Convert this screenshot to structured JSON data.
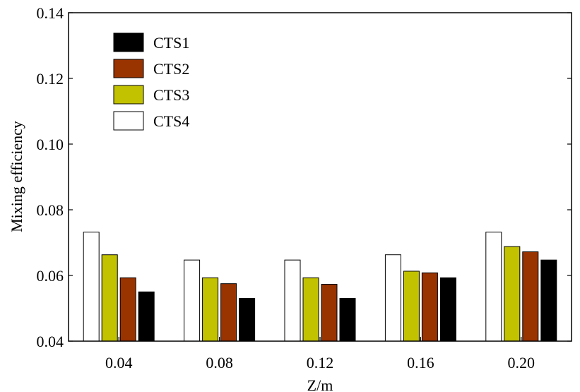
{
  "chart_data": {
    "type": "bar",
    "title": "",
    "xlabel": "Z/m",
    "ylabel": "Mixing efficiency",
    "categories": [
      "0.04",
      "0.08",
      "0.12",
      "0.16",
      "0.20"
    ],
    "ylim": [
      0.04,
      0.14
    ],
    "yticks": [
      "0.04",
      "0.06",
      "0.08",
      "0.10",
      "0.12",
      "0.14"
    ],
    "grid": false,
    "legend_position": "top-left",
    "series": [
      {
        "name": "CTS1",
        "color": "#000000",
        "values": [
          0.055,
          0.053,
          0.053,
          0.0593,
          0.0647
        ]
      },
      {
        "name": "CTS2",
        "color": "#993300",
        "values": [
          0.0593,
          0.0575,
          0.0573,
          0.0608,
          0.0672
        ]
      },
      {
        "name": "CTS3",
        "color": "#c2c200",
        "values": [
          0.0663,
          0.0593,
          0.0593,
          0.0613,
          0.0688
        ]
      },
      {
        "name": "CTS4",
        "color": "#ffffff",
        "values": [
          0.0732,
          0.0647,
          0.0647,
          0.0663,
          0.0732
        ]
      }
    ]
  }
}
